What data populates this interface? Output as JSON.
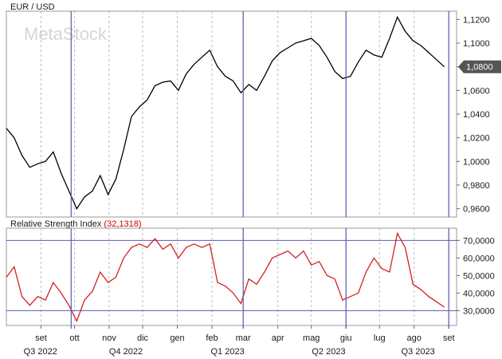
{
  "watermark": "MetaStock",
  "chart_data": [
    {
      "type": "line",
      "title": "EUR / USD",
      "y_ticks": [
        "1,1200",
        "1,1000",
        "1,0800",
        "1,0600",
        "1,0400",
        "1,0200",
        "1,0000",
        "0,9800",
        "0,9600"
      ],
      "ylim": [
        0.953,
        1.127
      ],
      "last_value_label": "1,0800",
      "last_value": 1.08,
      "series": [
        {
          "color": "#000000",
          "x": [
            "2022-08-01",
            "2022-08-08",
            "2022-08-15",
            "2022-08-22",
            "2022-08-29",
            "2022-09-05",
            "2022-09-12",
            "2022-09-19",
            "2022-09-26",
            "2022-10-03",
            "2022-10-10",
            "2022-10-17",
            "2022-10-24",
            "2022-10-31",
            "2022-11-07",
            "2022-11-14",
            "2022-11-21",
            "2022-11-28",
            "2022-12-05",
            "2022-12-12",
            "2022-12-19",
            "2022-12-26",
            "2023-01-02",
            "2023-01-09",
            "2023-01-16",
            "2023-01-23",
            "2023-01-30",
            "2023-02-06",
            "2023-02-13",
            "2023-02-20",
            "2023-02-27",
            "2023-03-06",
            "2023-03-13",
            "2023-03-20",
            "2023-03-27",
            "2023-04-03",
            "2023-04-10",
            "2023-04-17",
            "2023-04-24",
            "2023-05-01",
            "2023-05-08",
            "2023-05-15",
            "2023-05-22",
            "2023-05-29",
            "2023-06-05",
            "2023-06-12",
            "2023-06-19",
            "2023-06-26",
            "2023-07-03",
            "2023-07-10",
            "2023-07-17",
            "2023-07-24",
            "2023-07-31",
            "2023-08-07",
            "2023-08-14",
            "2023-08-21",
            "2023-08-28"
          ],
          "values": [
            1.028,
            1.02,
            1.005,
            0.995,
            0.998,
            1.0,
            1.008,
            0.99,
            0.975,
            0.96,
            0.97,
            0.975,
            0.988,
            0.972,
            0.985,
            1.01,
            1.038,
            1.046,
            1.052,
            1.064,
            1.067,
            1.068,
            1.06,
            1.074,
            1.082,
            1.088,
            1.094,
            1.08,
            1.072,
            1.068,
            1.058,
            1.065,
            1.06,
            1.072,
            1.085,
            1.092,
            1.096,
            1.1,
            1.102,
            1.104,
            1.098,
            1.088,
            1.076,
            1.07,
            1.072,
            1.084,
            1.094,
            1.09,
            1.088,
            1.104,
            1.122,
            1.11,
            1.102,
            1.098,
            1.092,
            1.086,
            1.08
          ]
        }
      ]
    },
    {
      "type": "line",
      "title": "Relative Strength Index",
      "title_value": "(32,1318)",
      "y_ticks": [
        "70,0000",
        "60,0000",
        "50,0000",
        "40,0000",
        "30,0000"
      ],
      "ylim": [
        21.5,
        77
      ],
      "reference_lines": [
        70,
        30
      ],
      "series": [
        {
          "color": "#d42020",
          "x": [
            "2022-08-01",
            "2022-08-08",
            "2022-08-15",
            "2022-08-22",
            "2022-08-29",
            "2022-09-05",
            "2022-09-12",
            "2022-09-19",
            "2022-09-26",
            "2022-10-03",
            "2022-10-10",
            "2022-10-17",
            "2022-10-24",
            "2022-10-31",
            "2022-11-07",
            "2022-11-14",
            "2022-11-21",
            "2022-11-28",
            "2022-12-05",
            "2022-12-12",
            "2022-12-19",
            "2022-12-26",
            "2023-01-02",
            "2023-01-09",
            "2023-01-16",
            "2023-01-23",
            "2023-01-30",
            "2023-02-06",
            "2023-02-13",
            "2023-02-20",
            "2023-02-27",
            "2023-03-06",
            "2023-03-13",
            "2023-03-20",
            "2023-03-27",
            "2023-04-03",
            "2023-04-10",
            "2023-04-17",
            "2023-04-24",
            "2023-05-01",
            "2023-05-08",
            "2023-05-15",
            "2023-05-22",
            "2023-05-29",
            "2023-06-05",
            "2023-06-12",
            "2023-06-19",
            "2023-06-26",
            "2023-07-03",
            "2023-07-10",
            "2023-07-17",
            "2023-07-24",
            "2023-07-31",
            "2023-08-07",
            "2023-08-14",
            "2023-08-21",
            "2023-08-28"
          ],
          "values": [
            49,
            55,
            38,
            33,
            38,
            36,
            46,
            40,
            33,
            24,
            36,
            41,
            52,
            46,
            49,
            60,
            66,
            68,
            66,
            71,
            65,
            68,
            60,
            66,
            68,
            66,
            68,
            46,
            44,
            40,
            34,
            48,
            45,
            52,
            60,
            62,
            64,
            60,
            64,
            56,
            58,
            50,
            48,
            36,
            38,
            40,
            52,
            60,
            54,
            52,
            74,
            66,
            45,
            42,
            38,
            35,
            32
          ]
        }
      ]
    }
  ],
  "x_axis": {
    "start": "2022-08-01",
    "end": "2023-09-08",
    "month_labels": [
      {
        "date": "2022-09-01",
        "label": "set"
      },
      {
        "date": "2022-10-01",
        "label": "ott"
      },
      {
        "date": "2022-11-01",
        "label": "nov"
      },
      {
        "date": "2022-12-01",
        "label": "dic"
      },
      {
        "date": "2023-01-01",
        "label": "gen"
      },
      {
        "date": "2023-02-01",
        "label": "feb"
      },
      {
        "date": "2023-03-01",
        "label": "mar"
      },
      {
        "date": "2023-04-01",
        "label": "apr"
      },
      {
        "date": "2023-05-01",
        "label": "mag"
      },
      {
        "date": "2023-06-01",
        "label": "giu"
      },
      {
        "date": "2023-07-01",
        "label": "lug"
      },
      {
        "date": "2023-08-01",
        "label": "ago"
      },
      {
        "date": "2023-09-01",
        "label": "set"
      }
    ],
    "quarter_labels": [
      {
        "date": "2022-08-01",
        "label": "Q3 2022"
      },
      {
        "date": "2022-10-01",
        "label": "Q4 2022"
      },
      {
        "date": "2023-01-01",
        "label": "Q1 2023"
      },
      {
        "date": "2023-04-01",
        "label": "Q2 2023"
      },
      {
        "date": "2023-07-01",
        "label": "Q3 2023"
      }
    ],
    "markers": [
      "2022-09-28",
      "2023-03-01",
      "2023-06-01",
      "2023-09-01"
    ]
  },
  "colors": {
    "grid": "#bcbcbc",
    "marker": "#5a5ab4",
    "reference": "#5a5ab4",
    "badge": "#555555"
  }
}
